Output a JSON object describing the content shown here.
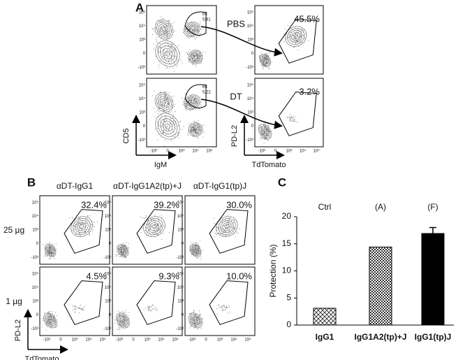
{
  "panel_a": {
    "label": "A",
    "plots": [
      {
        "gate": "B1",
        "gate_value": "5.61",
        "arrow_label": "PBS",
        "percent": "45.5%"
      },
      {
        "gate": "B1",
        "gate_value": "5.22",
        "arrow_label": "DT",
        "percent": "3.2%"
      }
    ],
    "left_x_label": "IgM",
    "left_y_label": "CD5",
    "right_x_label": "TdTomato",
    "right_y_label": "PD-L2"
  },
  "flow_ticks": [
    "-10³",
    "0",
    "10³",
    "10⁴",
    "10⁵"
  ],
  "panel_b": {
    "label": "B",
    "columns": [
      "αDT-IgG1",
      "αDT-IgG1A2(tp)+J",
      "αDT-IgG1(tp)J"
    ],
    "rows": [
      {
        "dose": "25 µg",
        "percents": [
          "32.4%",
          "39.2%",
          "30.0%"
        ]
      },
      {
        "dose": "1 µg",
        "percents": [
          "4.5%",
          "9.3%",
          "10.0%"
        ]
      }
    ],
    "x_label": "TdTomato",
    "y_label": "PD-L2"
  },
  "panel_c": {
    "label": "C"
  },
  "chart_data": {
    "type": "bar",
    "categories": [
      "IgG1",
      "IgG1A2(tp)+J",
      "IgG1(tp)J"
    ],
    "groups": [
      "Ctrl",
      "(A)",
      "(F)"
    ],
    "values": [
      3.1,
      14.4,
      16.9
    ],
    "errors": [
      null,
      null,
      1.1
    ],
    "patterns": [
      "crosshatch",
      "checker",
      "solid"
    ],
    "color": "#000000",
    "ylim": [
      0,
      20
    ],
    "yticks": [
      0,
      5,
      10,
      15,
      20
    ],
    "y_label": "Protection (%)"
  }
}
